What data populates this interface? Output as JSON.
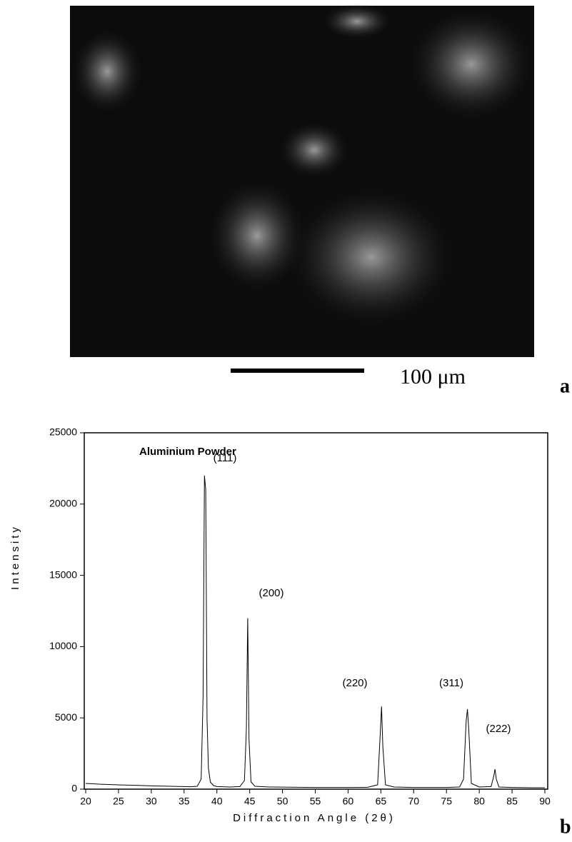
{
  "figure": {
    "scale_label": "100 μm",
    "panel_a": "a",
    "panel_b": "b"
  },
  "chart_data": {
    "type": "line",
    "title": "Aluminium Powder",
    "x_label": "Diffraction Angle (2θ)",
    "y_label": "Intensity",
    "annotations": [
      "(111)",
      "(200)",
      "(220)",
      "(311)",
      "(222)"
    ],
    "series": [
      {
        "name": "Aluminium Powder",
        "color": "#000000",
        "x": [
          20,
          21,
          22,
          25,
          28,
          30,
          33,
          35,
          36,
          37,
          37.6,
          37.9,
          38.1,
          38.3,
          38.5,
          38.7,
          39,
          39.5,
          40,
          42,
          43.5,
          44.2,
          44.5,
          44.7,
          44.9,
          45.2,
          45.8,
          48,
          55,
          60,
          63,
          64.5,
          64.9,
          65.1,
          65.3,
          65.7,
          67,
          70,
          75,
          77,
          77.6,
          78,
          78.2,
          78.4,
          78.8,
          80,
          81.8,
          82.2,
          82.4,
          82.6,
          83,
          85,
          88,
          90
        ],
        "values": [
          400,
          380,
          350,
          300,
          260,
          230,
          200,
          180,
          170,
          200,
          700,
          6500,
          22000,
          21000,
          5000,
          1500,
          500,
          250,
          180,
          150,
          180,
          600,
          4200,
          12000,
          3500,
          500,
          200,
          150,
          120,
          120,
          130,
          300,
          3800,
          5800,
          3000,
          300,
          150,
          120,
          120,
          150,
          700,
          4800,
          5600,
          4200,
          400,
          150,
          180,
          900,
          1400,
          700,
          150,
          120,
          100,
          100
        ]
      }
    ],
    "xlim": [
      20,
      90
    ],
    "xticks": [
      20,
      25,
      30,
      35,
      40,
      45,
      50,
      55,
      60,
      65,
      70,
      75,
      80,
      85,
      90
    ],
    "ylim": [
      0,
      25000
    ],
    "yticks": [
      0,
      5000,
      10000,
      15000,
      20000,
      25000
    ]
  }
}
